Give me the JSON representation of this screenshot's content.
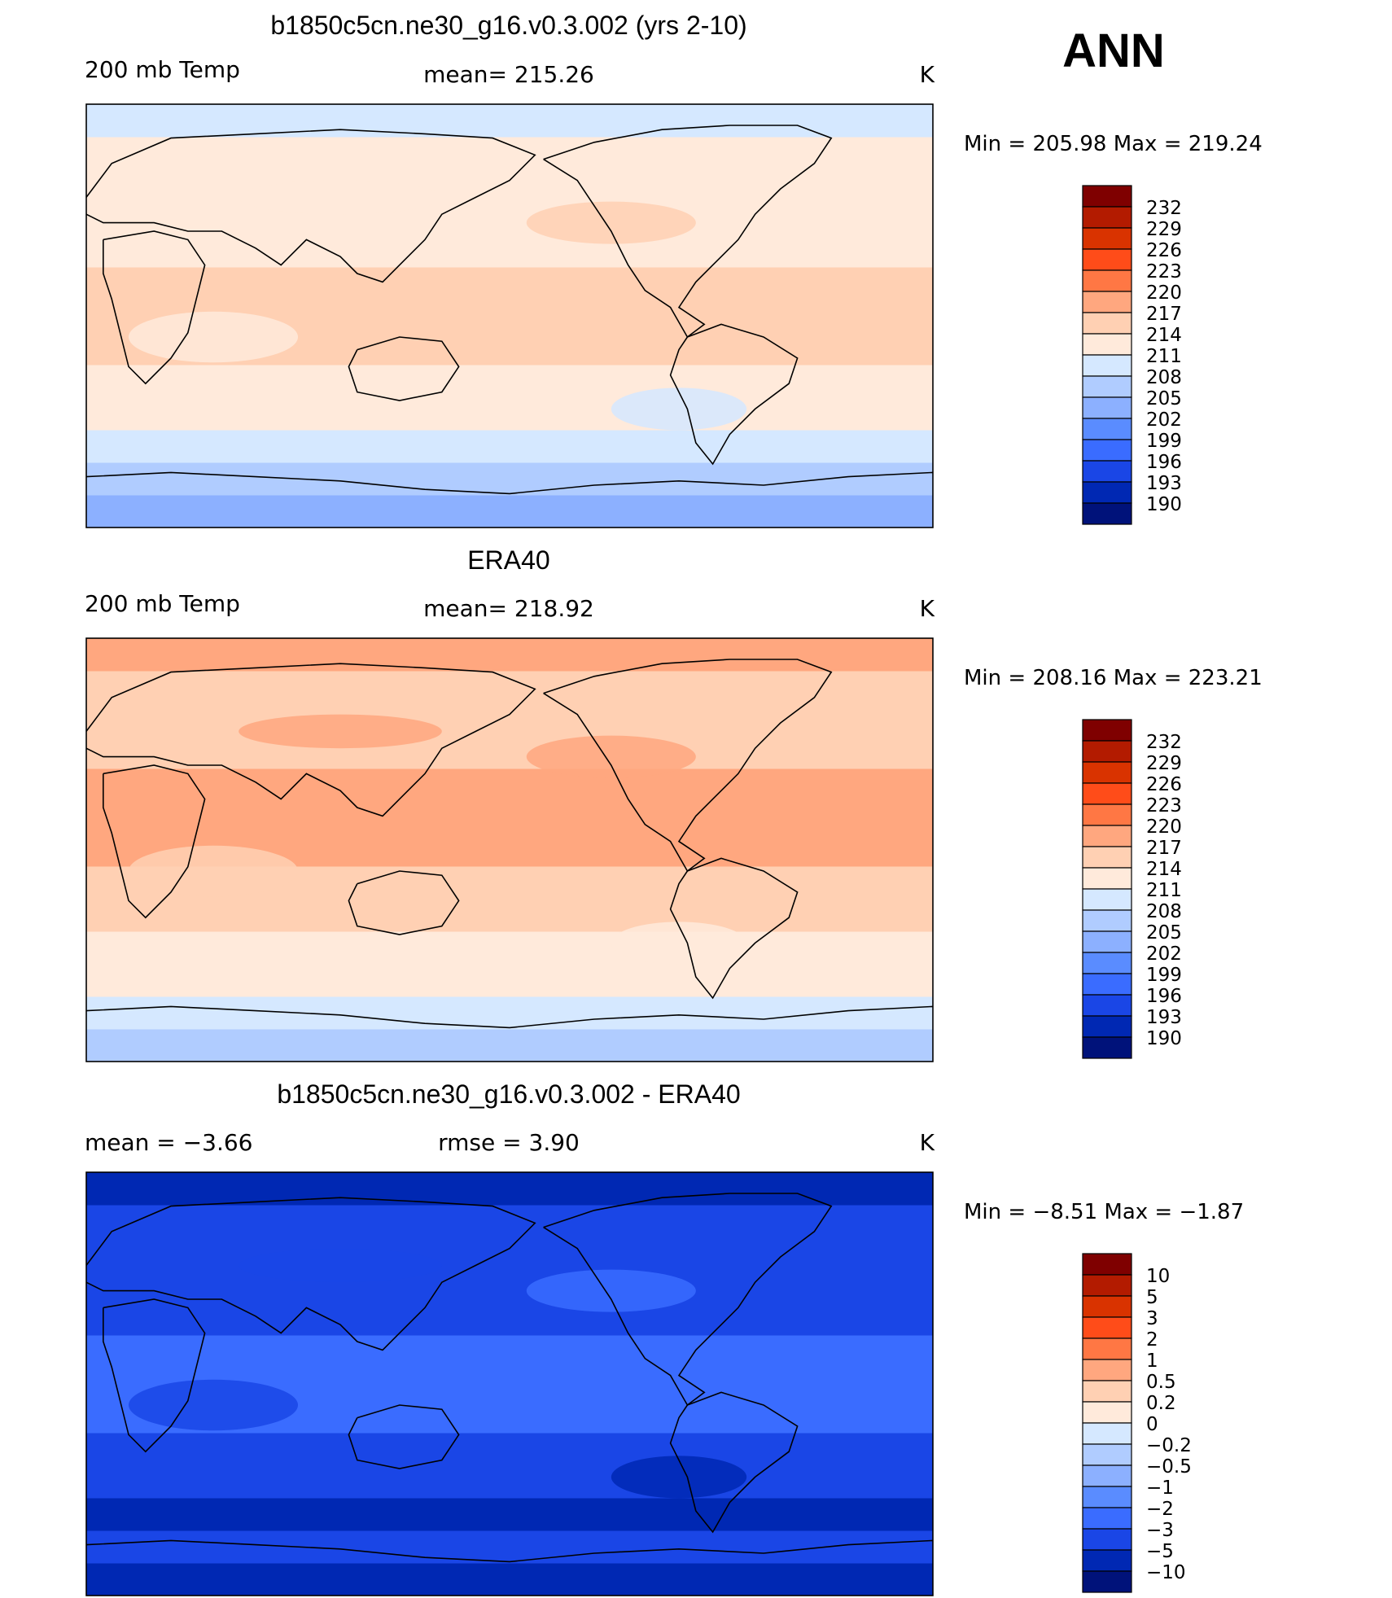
{
  "season": "ANN",
  "panels": [
    {
      "title": "b1850c5cn.ne30_g16.v0.3.002 (yrs 2-10)",
      "left_label": "200 mb Temp",
      "center_label": "mean= 215.26",
      "units": "K",
      "minmax": "Min = 205.98 Max = 219.24",
      "colorbar_labels": [
        "232",
        "229",
        "226",
        "223",
        "220",
        "217",
        "214",
        "211",
        "208",
        "205",
        "202",
        "199",
        "196",
        "193",
        "190"
      ],
      "bands_south_to_north": [
        "205",
        "208",
        "211",
        "214",
        "214",
        "217",
        "217",
        "217",
        "214",
        "214",
        "214",
        "214",
        "211"
      ]
    },
    {
      "title": "ERA40",
      "left_label": "200 mb Temp",
      "center_label": "mean= 218.92",
      "units": "K",
      "minmax": "Min = 208.16 Max = 223.21",
      "colorbar_labels": [
        "232",
        "229",
        "226",
        "223",
        "220",
        "217",
        "214",
        "211",
        "208",
        "205",
        "202",
        "199",
        "196",
        "193",
        "190"
      ],
      "bands_south_to_north": [
        "208",
        "211",
        "214",
        "214",
        "217",
        "217",
        "220",
        "220",
        "220",
        "217",
        "217",
        "217",
        "220"
      ]
    },
    {
      "title": "b1850c5cn.ne30_g16.v0.3.002 - ERA40",
      "left_label": "mean = −3.66",
      "center_label": "rmse = 3.90",
      "units": "K",
      "minmax": "Min = −8.51 Max = −1.87",
      "colorbar_labels": [
        "10",
        "5",
        "3",
        "2",
        "1",
        "0.5",
        "0.2",
        "0",
        "−0.2",
        "−0.5",
        "−1",
        "−2",
        "−3",
        "−5",
        "−10"
      ],
      "bands_south_to_north": [
        "−5",
        "−3",
        "−5",
        "−3",
        "−3",
        "−2",
        "−2",
        "−2",
        "−3",
        "−3",
        "−3",
        "−3",
        "−5"
      ]
    }
  ],
  "colors": {
    "warm_scale": [
      "#7f0000",
      "#b31b00",
      "#d93300",
      "#ff4c19",
      "#ff7744",
      "#ffa77f",
      "#ffd0b3",
      "#ffeadb",
      "#d5e8ff",
      "#b0ccff",
      "#8cb0ff",
      "#5a8cff",
      "#3a6cff",
      "#1a46e6",
      "#0028b3",
      "#00127a"
    ],
    "coast": "#000000"
  }
}
